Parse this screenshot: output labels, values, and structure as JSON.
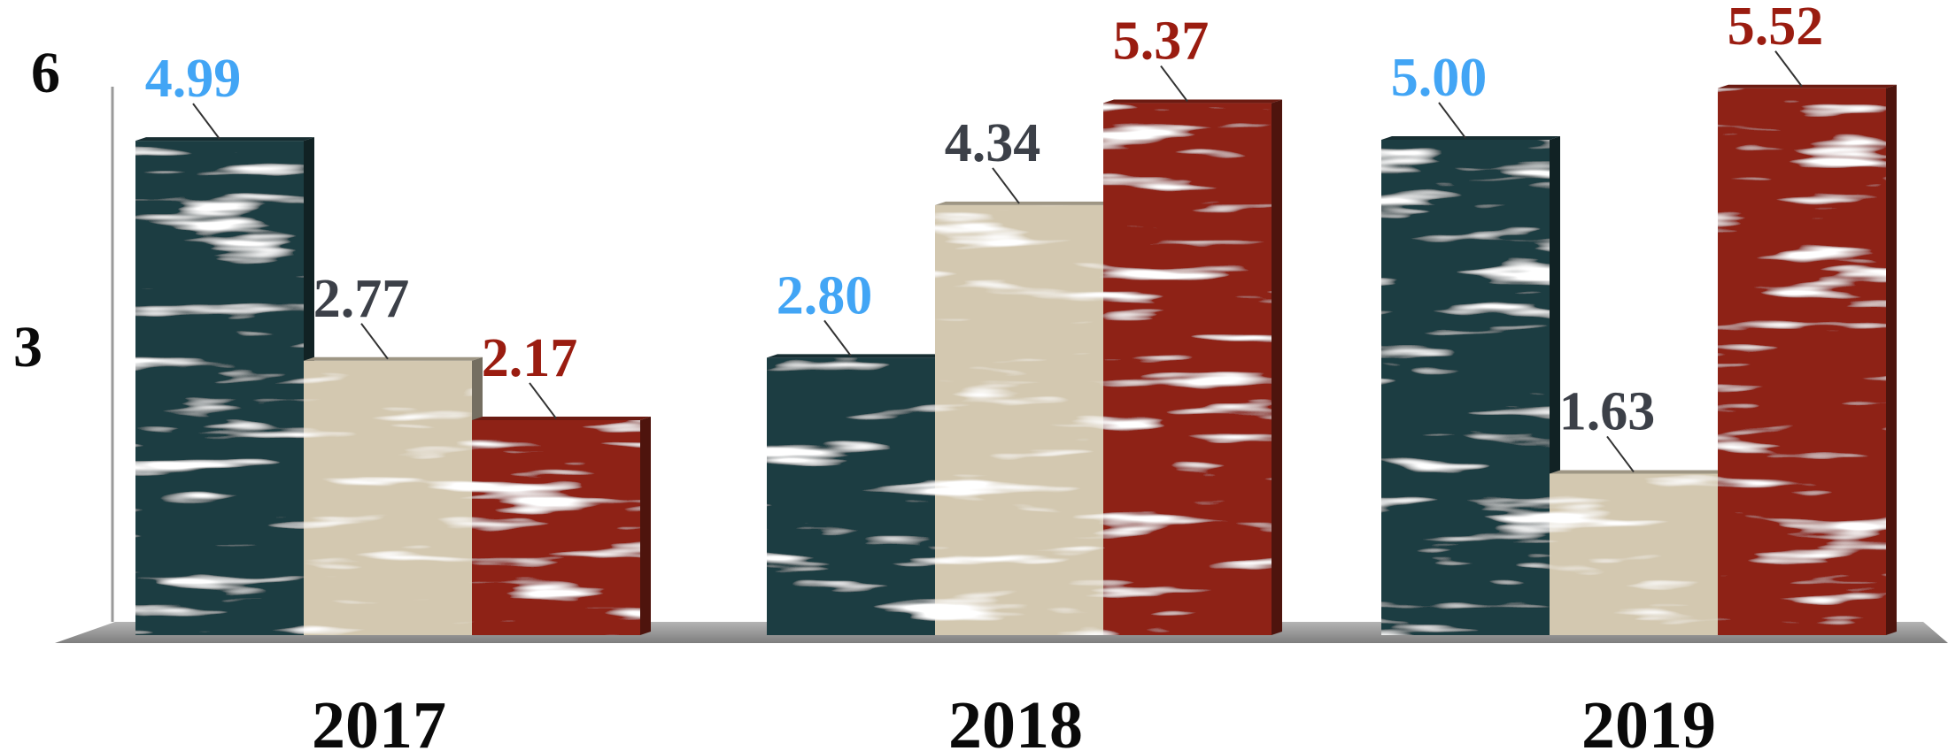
{
  "chart_data": {
    "type": "bar",
    "categories": [
      "2017",
      "2018",
      "2019"
    ],
    "series": [
      {
        "values": [
          4.99,
          2.8,
          5.0
        ],
        "color": "#1e3d42",
        "label_color": "#42a5f5"
      },
      {
        "values": [
          2.77,
          4.34,
          1.63
        ],
        "color": "#d3c8b0",
        "label_color": "#3c4048"
      },
      {
        "values": [
          2.17,
          5.37,
          5.52
        ],
        "color": "#8e2418",
        "label_color": "#9a1c10"
      }
    ],
    "y_ticks": [
      "3",
      "6"
    ],
    "ylim": [
      0,
      6
    ],
    "labels": [
      [
        "4.99",
        "2.80",
        "5.00"
      ],
      [
        "2.77",
        "4.34",
        "1.63"
      ],
      [
        "2.17",
        "5.37",
        "5.52"
      ]
    ],
    "grid": false,
    "legend": "none"
  }
}
